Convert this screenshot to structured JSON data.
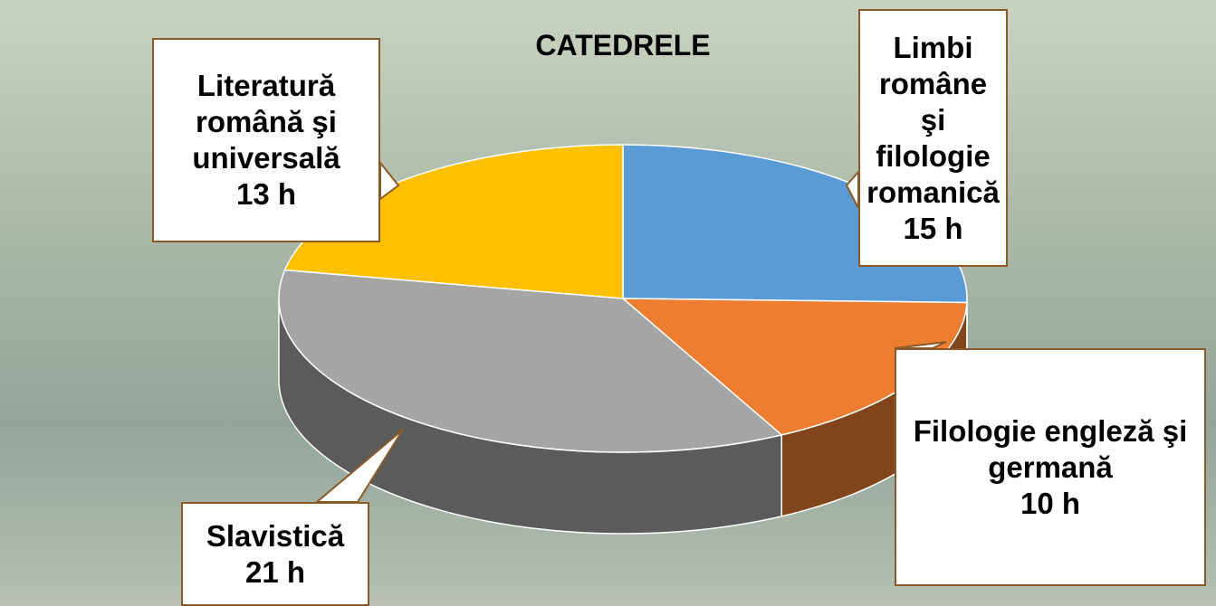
{
  "chart_data": {
    "type": "pie",
    "title": "CATEDRELE",
    "categories": [
      "Limbi române şi filologie romanică",
      "Filologie engleză şi germană",
      "Slavistică",
      "Literatură română şi universală"
    ],
    "values": [
      15,
      10,
      21,
      13
    ],
    "value_labels": [
      "15 h",
      "10 h",
      "21 h",
      "13 h"
    ],
    "colors": [
      "#5b9bd5",
      "#ed7d31",
      "#a5a5a5",
      "#ffc000"
    ]
  }
}
